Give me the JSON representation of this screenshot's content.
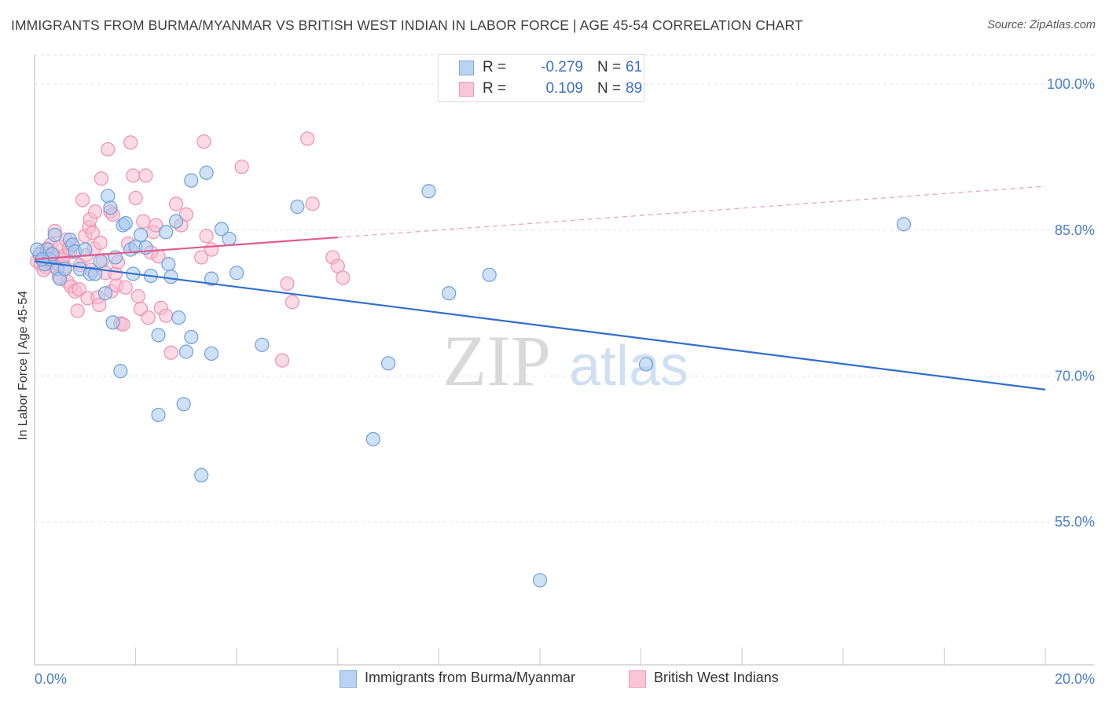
{
  "title": "IMMIGRANTS FROM BURMA/MYANMAR VS BRITISH WEST INDIAN IN LABOR FORCE | AGE 45-54 CORRELATION CHART",
  "source": "Source: ZipAtlas.com",
  "watermark": {
    "zip": "ZIP",
    "atlas": "atlas"
  },
  "legend": {
    "series": [
      {
        "r_label": "R =",
        "r_value": "-0.279",
        "n_label": "N =",
        "n_value": "61"
      },
      {
        "r_label": "R =",
        "r_value": "0.109",
        "n_label": "N =",
        "n_value": "89"
      }
    ]
  },
  "colors": {
    "blue_fill": "#a8c8f0",
    "blue_stroke": "#6f9fd8",
    "blue_line": "#2f6fce",
    "pink_fill": "#f7bcd0",
    "pink_stroke": "#ee90b0",
    "pink_line": "#e05c8c",
    "grid": "#e3e3e3",
    "axis_text": "#4a7ec8"
  },
  "chart_data": {
    "type": "scatter",
    "title": "IMMIGRANTS FROM BURMA/MYANMAR VS BRITISH WEST INDIAN IN LABOR FORCE | AGE 45-54 CORRELATION CHART",
    "xlabel": "",
    "ylabel": "In Labor Force | Age 45-54",
    "xlim": [
      0,
      20
    ],
    "ylim": [
      40.3,
      103
    ],
    "x_tick_labels": [
      "0.0%",
      "20.0%"
    ],
    "y_ticks": [
      55,
      70,
      85,
      100
    ],
    "y_tick_labels": [
      "55.0%",
      "70.0%",
      "85.0%",
      "100.0%"
    ],
    "grid": true,
    "series": [
      {
        "name": "Immigrants from Burma/Myanmar",
        "color": "blue",
        "trend": {
          "x0": 0.0,
          "y0": 81.8,
          "x1": 20.0,
          "y1": 68.6,
          "dashed_from": null
        },
        "points": [
          [
            0.1,
            82.5
          ],
          [
            0.2,
            81.5
          ],
          [
            0.25,
            83.0
          ],
          [
            0.3,
            82.0
          ],
          [
            0.35,
            82.5
          ],
          [
            0.4,
            84.5
          ],
          [
            0.45,
            81.0
          ],
          [
            0.5,
            80.0
          ],
          [
            0.6,
            81.0
          ],
          [
            0.7,
            84.0
          ],
          [
            0.75,
            83.5
          ],
          [
            0.8,
            82.8
          ],
          [
            0.9,
            81.0
          ],
          [
            1.0,
            83.0
          ],
          [
            1.1,
            80.5
          ],
          [
            1.2,
            80.5
          ],
          [
            1.3,
            81.8
          ],
          [
            1.4,
            78.5
          ],
          [
            1.45,
            88.5
          ],
          [
            1.5,
            87.3
          ],
          [
            1.55,
            75.5
          ],
          [
            1.6,
            82.2
          ],
          [
            1.7,
            70.5
          ],
          [
            1.75,
            85.5
          ],
          [
            1.8,
            85.7
          ],
          [
            1.9,
            83.0
          ],
          [
            1.95,
            80.5
          ],
          [
            2.0,
            83.3
          ],
          [
            2.1,
            84.5
          ],
          [
            2.2,
            83.2
          ],
          [
            2.3,
            80.3
          ],
          [
            2.45,
            74.2
          ],
          [
            2.45,
            66.0
          ],
          [
            2.6,
            84.8
          ],
          [
            2.65,
            81.5
          ],
          [
            2.7,
            80.2
          ],
          [
            2.8,
            85.9
          ],
          [
            2.85,
            76.0
          ],
          [
            2.95,
            67.1
          ],
          [
            3.0,
            72.5
          ],
          [
            3.1,
            74.0
          ],
          [
            3.1,
            90.1
          ],
          [
            3.3,
            59.8
          ],
          [
            3.4,
            90.9
          ],
          [
            3.5,
            80.0
          ],
          [
            3.5,
            72.3
          ],
          [
            3.7,
            85.1
          ],
          [
            3.85,
            84.1
          ],
          [
            4.0,
            80.6
          ],
          [
            4.5,
            73.2
          ],
          [
            5.2,
            87.4
          ],
          [
            6.7,
            63.5
          ],
          [
            7.0,
            71.3
          ],
          [
            7.8,
            89.0
          ],
          [
            8.2,
            78.5
          ],
          [
            9.0,
            80.4
          ],
          [
            10.0,
            49.0
          ],
          [
            12.1,
            71.2
          ],
          [
            17.2,
            85.6
          ],
          [
            0.05,
            83.0
          ],
          [
            0.15,
            82.0
          ]
        ]
      },
      {
        "name": "British West Indians",
        "color": "pink",
        "trend": {
          "x0": 0.0,
          "y0": 82.0,
          "x1": 20.0,
          "y1": 89.5,
          "dashed_from": 6.0
        },
        "points": [
          [
            0.05,
            81.8
          ],
          [
            0.1,
            82.5
          ],
          [
            0.12,
            81.5
          ],
          [
            0.15,
            82.8
          ],
          [
            0.2,
            82.2
          ],
          [
            0.22,
            81.2
          ],
          [
            0.25,
            83.1
          ],
          [
            0.28,
            82.0
          ],
          [
            0.3,
            81.7
          ],
          [
            0.32,
            83.5
          ],
          [
            0.35,
            82.6
          ],
          [
            0.38,
            81.3
          ],
          [
            0.4,
            84.9
          ],
          [
            0.42,
            82.2
          ],
          [
            0.45,
            81.6
          ],
          [
            0.5,
            83.3
          ],
          [
            0.55,
            82.0
          ],
          [
            0.6,
            81.2
          ],
          [
            0.62,
            84.0
          ],
          [
            0.65,
            79.7
          ],
          [
            0.7,
            82.7
          ],
          [
            0.72,
            79.2
          ],
          [
            0.75,
            83.5
          ],
          [
            0.8,
            78.7
          ],
          [
            0.85,
            76.7
          ],
          [
            0.88,
            78.9
          ],
          [
            0.9,
            81.4
          ],
          [
            0.95,
            88.1
          ],
          [
            1.0,
            84.4
          ],
          [
            1.02,
            82.4
          ],
          [
            1.05,
            78.0
          ],
          [
            1.08,
            85.3
          ],
          [
            1.1,
            86.1
          ],
          [
            1.12,
            80.9
          ],
          [
            1.15,
            84.7
          ],
          [
            1.18,
            83.1
          ],
          [
            1.2,
            86.9
          ],
          [
            1.25,
            78.1
          ],
          [
            1.28,
            77.3
          ],
          [
            1.3,
            83.7
          ],
          [
            1.32,
            90.3
          ],
          [
            1.35,
            81.9
          ],
          [
            1.4,
            80.6
          ],
          [
            1.45,
            93.3
          ],
          [
            1.5,
            86.9
          ],
          [
            1.52,
            78.7
          ],
          [
            1.55,
            86.6
          ],
          [
            1.6,
            80.5
          ],
          [
            1.62,
            79.3
          ],
          [
            1.65,
            81.7
          ],
          [
            1.7,
            75.4
          ],
          [
            1.75,
            75.3
          ],
          [
            1.8,
            79.1
          ],
          [
            1.85,
            83.6
          ],
          [
            1.9,
            94.0
          ],
          [
            1.95,
            90.6
          ],
          [
            2.0,
            88.3
          ],
          [
            2.05,
            78.2
          ],
          [
            2.1,
            76.9
          ],
          [
            2.15,
            85.9
          ],
          [
            2.2,
            90.6
          ],
          [
            2.25,
            76.0
          ],
          [
            2.3,
            82.7
          ],
          [
            2.35,
            84.8
          ],
          [
            2.4,
            85.5
          ],
          [
            2.45,
            82.3
          ],
          [
            2.5,
            77.0
          ],
          [
            2.6,
            76.2
          ],
          [
            2.7,
            72.4
          ],
          [
            2.8,
            87.7
          ],
          [
            2.9,
            85.5
          ],
          [
            3.0,
            86.6
          ],
          [
            3.3,
            82.2
          ],
          [
            3.35,
            94.1
          ],
          [
            3.4,
            84.4
          ],
          [
            3.5,
            83.0
          ],
          [
            4.1,
            91.5
          ],
          [
            4.9,
            71.6
          ],
          [
            5.0,
            79.5
          ],
          [
            5.1,
            77.6
          ],
          [
            5.4,
            94.4
          ],
          [
            5.5,
            87.7
          ],
          [
            5.9,
            82.2
          ],
          [
            6.0,
            81.3
          ],
          [
            6.1,
            80.1
          ],
          [
            0.18,
            80.9
          ],
          [
            0.48,
            80.2
          ],
          [
            0.58,
            82.3
          ],
          [
            0.68,
            83.1
          ]
        ]
      }
    ]
  },
  "bottom_legend": [
    {
      "label": "Immigrants from Burma/Myanmar"
    },
    {
      "label": "British West Indians"
    }
  ]
}
